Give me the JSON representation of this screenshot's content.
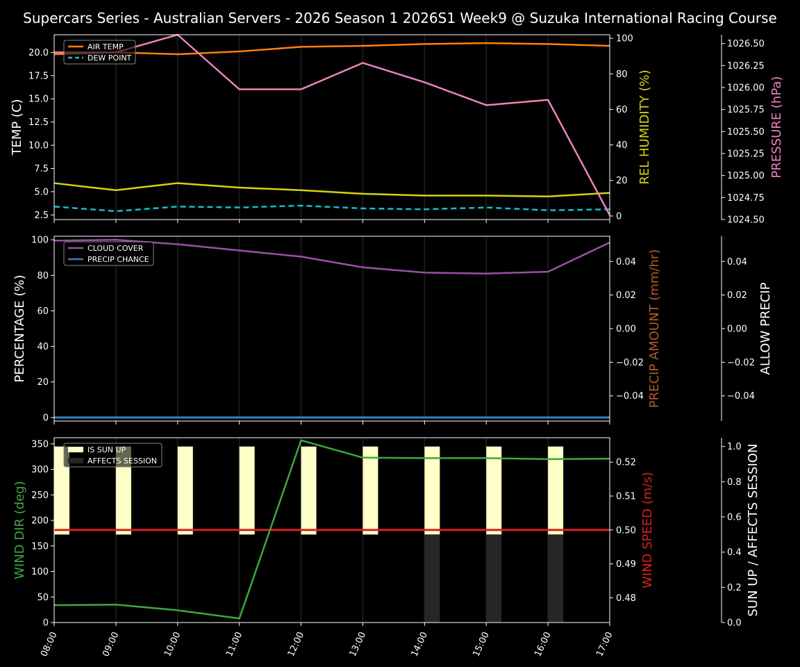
{
  "title": "Supercars Series - Australian Servers - 2026 Season 1 2026S1 Week9 @ Suzuka International Racing Course",
  "colors": {
    "air_temp": "#ff7f0e",
    "dew_point": "#17becf",
    "humidity": "#d4d40f",
    "pressure": "#ee82be",
    "cloud_cover": "#9b4fa8",
    "precip_chance": "#3a7fbf",
    "precip_amount_label": "#b05a2a",
    "wind_dir": "#3ea83e",
    "wind_speed": "#d62020",
    "sun_up": "#ffffc8",
    "affects_session": "#262626"
  },
  "chart_data": [
    {
      "type": "line",
      "panel": "temperature",
      "x": [
        "08:00",
        "09:00",
        "10:00",
        "11:00",
        "12:00",
        "13:00",
        "14:00",
        "15:00",
        "16:00",
        "17:00"
      ],
      "ylabel": "TEMP (C)",
      "ylabel_right": "REL HUMIDITY (%)",
      "ylabel_right2": "PRESSURE (hPa)",
      "ylim": [
        2.0,
        21.9
      ],
      "ylim_right": [
        -2,
        102
      ],
      "ylim_right2": [
        1024.5,
        1026.6
      ],
      "yticks": [
        "2.5",
        "5.0",
        "7.5",
        "10.0",
        "12.5",
        "15.0",
        "17.5",
        "20.0"
      ],
      "yticks_right": [
        "0",
        "20",
        "40",
        "60",
        "80",
        "100"
      ],
      "yticks_right2": [
        "1024.50",
        "1024.75",
        "1025.00",
        "1025.25",
        "1025.50",
        "1025.75",
        "1026.00",
        "1026.25",
        "1026.50"
      ],
      "legend": [
        "AIR TEMP",
        "DEW POINT"
      ],
      "series": [
        {
          "name": "AIR TEMP",
          "axis": "left",
          "values": [
            19.8,
            20.0,
            19.8,
            20.1,
            20.6,
            20.7,
            20.9,
            21.0,
            20.9,
            20.7
          ]
        },
        {
          "name": "DEW POINT",
          "axis": "left",
          "values": [
            3.4,
            2.9,
            3.4,
            3.3,
            3.5,
            3.2,
            3.1,
            3.3,
            3.0,
            3.1
          ]
        },
        {
          "name": "REL HUMIDITY",
          "axis": "right",
          "values": [
            18.5,
            14.5,
            18.5,
            16.0,
            14.5,
            12.5,
            11.5,
            11.5,
            11.0,
            13.0
          ]
        },
        {
          "name": "PRESSURE",
          "axis": "right2",
          "values": [
            1026.4,
            1026.4,
            1026.6,
            1025.98,
            1025.98,
            1026.28,
            1026.06,
            1025.8,
            1025.86,
            1024.55
          ]
        }
      ]
    },
    {
      "type": "line",
      "panel": "precipitation",
      "x": [
        "08:00",
        "09:00",
        "10:00",
        "11:00",
        "12:00",
        "13:00",
        "14:00",
        "15:00",
        "16:00",
        "17:00"
      ],
      "ylabel": "PERCENTAGE (%)",
      "ylabel_right": "PRECIP AMOUNT (mm/hr)",
      "ylabel_right2": "ALLOW PRECIP",
      "ylim": [
        -2,
        102
      ],
      "ylim_right": [
        -0.055,
        0.055
      ],
      "yticks": [
        "0",
        "20",
        "40",
        "60",
        "80",
        "100"
      ],
      "yticks_right": [
        "−0.04",
        "−0.02",
        "0.00",
        "0.02",
        "0.04"
      ],
      "yticks_right2": [
        "−0.04",
        "−0.02",
        "0.00",
        "0.02",
        "0.04"
      ],
      "legend": [
        "CLOUD COVER",
        "PRECIP CHANCE"
      ],
      "series": [
        {
          "name": "CLOUD COVER",
          "values": [
            99.5,
            100.0,
            97.5,
            94.0,
            90.5,
            84.5,
            81.5,
            81.0,
            82.0,
            98.5
          ]
        },
        {
          "name": "PRECIP CHANCE",
          "values": [
            0,
            0,
            0,
            0,
            0,
            0,
            0,
            0,
            0,
            0
          ]
        }
      ]
    },
    {
      "type": "line",
      "panel": "wind",
      "x": [
        "08:00",
        "09:00",
        "10:00",
        "11:00",
        "12:00",
        "13:00",
        "14:00",
        "15:00",
        "16:00",
        "17:00"
      ],
      "ylabel": "WIND DIR (deg)",
      "ylabel_right": "WIND SPEED (m/s)",
      "ylabel_right2": "SUN UP / AFFECTS SESSION",
      "ylim": [
        0,
        362
      ],
      "ylim_right": [
        0.4727,
        0.5272
      ],
      "ylim_right2": [
        0,
        1.05
      ],
      "yticks": [
        "0",
        "50",
        "100",
        "150",
        "200",
        "250",
        "300",
        "350"
      ],
      "yticks_right": [
        "0.48",
        "0.49",
        "0.50",
        "0.51",
        "0.52"
      ],
      "yticks_right2": [
        "0.0",
        "0.2",
        "0.4",
        "0.6",
        "0.8",
        "1.0"
      ],
      "legend": [
        "IS SUN UP",
        "AFFECTS SESSION"
      ],
      "series": [
        {
          "name": "WIND DIR",
          "values": [
            34,
            35,
            24,
            8,
            357,
            323,
            322,
            322,
            320,
            321
          ]
        },
        {
          "name": "WIND SPEED",
          "values": [
            0.5,
            0.5,
            0.5,
            0.5,
            0.5,
            0.5,
            0.5,
            0.5,
            0.5,
            0.5
          ]
        },
        {
          "name": "IS SUN UP",
          "type": "bar",
          "values": [
            1,
            1,
            1,
            1,
            1,
            1,
            1,
            1,
            1,
            0
          ]
        },
        {
          "name": "AFFECTS SESSION",
          "type": "bar",
          "values": [
            0,
            0,
            0,
            0,
            0,
            0,
            1,
            1,
            1,
            0
          ]
        }
      ]
    }
  ]
}
